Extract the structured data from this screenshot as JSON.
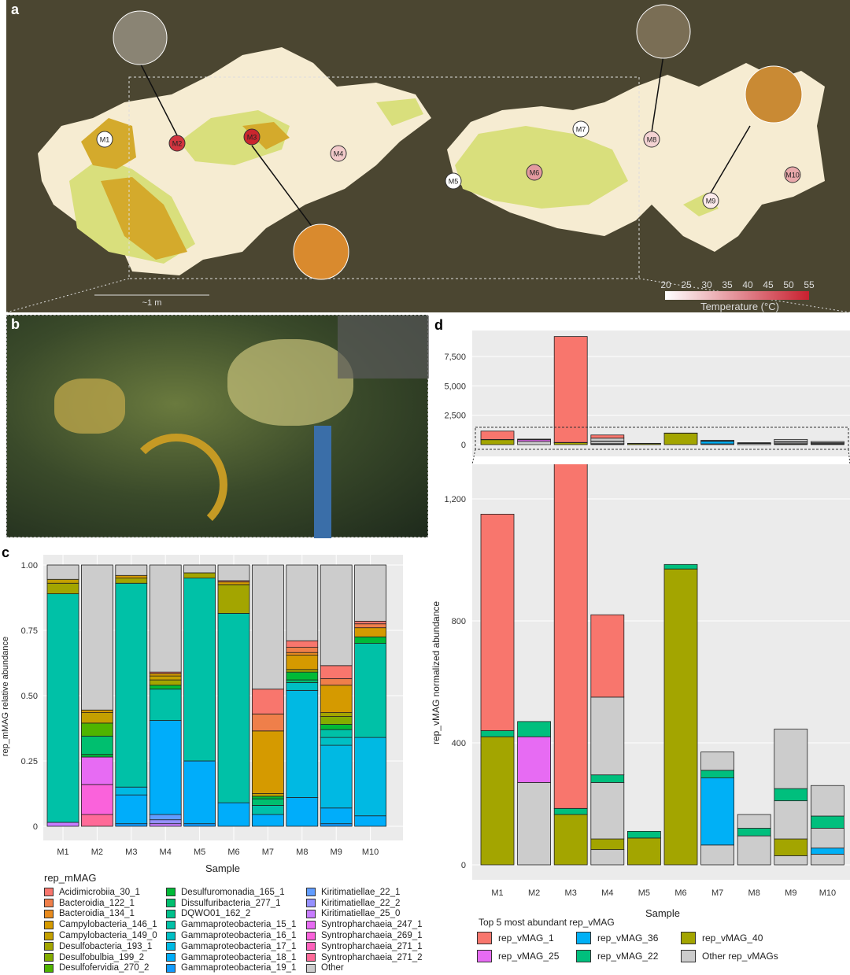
{
  "panels": {
    "a": "a",
    "b": "b",
    "c": "c",
    "d": "d"
  },
  "panel_a": {
    "scale_bar": "~1 m",
    "colorbar": {
      "title": "Temperature (°C)",
      "ticks": [
        "20",
        "25",
        "30",
        "35",
        "40",
        "45",
        "50",
        "55"
      ],
      "min_color": "#ffffff",
      "max_color": "#c8202f"
    },
    "sites": [
      {
        "label": "M1",
        "color": "#ffffff"
      },
      {
        "label": "M2",
        "color": "#d2343f"
      },
      {
        "label": "M3",
        "color": "#c9262e"
      },
      {
        "label": "M4",
        "color": "#f2caca"
      },
      {
        "label": "M5",
        "color": "#ffffff"
      },
      {
        "label": "M6",
        "color": "#e39aa0"
      },
      {
        "label": "M7",
        "color": "#ffffff"
      },
      {
        "label": "M8",
        "color": "#f4d3d3"
      },
      {
        "label": "M9",
        "color": "#fbeaea"
      },
      {
        "label": "M10",
        "color": "#e8a8aa"
      }
    ]
  },
  "chart_data": [
    {
      "type": "bar",
      "stacked": true,
      "panel": "c",
      "xlabel": "Sample",
      "ylabel": "rep_mMAG relative abundance",
      "ylim": [
        0,
        1
      ],
      "yticks": [
        "0",
        "0.25",
        "0.50",
        "0.75",
        "1.00"
      ],
      "ytick_values": [
        0,
        0.25,
        0.5,
        0.75,
        1.0
      ],
      "categories": [
        "M1",
        "M2",
        "M3",
        "M4",
        "M5",
        "M6",
        "M7",
        "M8",
        "M9",
        "M10"
      ],
      "legend_title": "rep_mMAG",
      "legend": [
        {
          "name": "Acidimicrobiia_30_1",
          "color": "#f8766d"
        },
        {
          "name": "Bacteroidia_122_1",
          "color": "#ef7f4a"
        },
        {
          "name": "Bacteroidia_134_1",
          "color": "#e88b1e"
        },
        {
          "name": "Campylobacteria_146_1",
          "color": "#d59a00"
        },
        {
          "name": "Campylobacteria_149_0",
          "color": "#c4a000"
        },
        {
          "name": "Desulfobacteria_193_1",
          "color": "#a3a500"
        },
        {
          "name": "Desulfobulbia_199_2",
          "color": "#84ad00"
        },
        {
          "name": "Desulfofervidia_270_2",
          "color": "#4fb400"
        },
        {
          "name": "Desulfuromonadia_165_1",
          "color": "#00ba38"
        },
        {
          "name": "Dissulfuribacteria_277_1",
          "color": "#00bf6f"
        },
        {
          "name": "DQWO01_162_2",
          "color": "#00c08b"
        },
        {
          "name": "Gammaproteobacteria_15_1",
          "color": "#00c1a7"
        },
        {
          "name": "Gammaproteobacteria_16_1",
          "color": "#00bfc4"
        },
        {
          "name": "Gammaproteobacteria_17_1",
          "color": "#00b9e3"
        },
        {
          "name": "Gammaproteobacteria_18_1",
          "color": "#00adfa"
        },
        {
          "name": "Gammaproteobacteria_19_1",
          "color": "#119cff"
        },
        {
          "name": "Kiritimatiellae_22_1",
          "color": "#619cff"
        },
        {
          "name": "Kiritimatiellae_22_2",
          "color": "#9590ff"
        },
        {
          "name": "Kiritimatiellae_25_0",
          "color": "#c77cff"
        },
        {
          "name": "Syntropharchaeia_247_1",
          "color": "#e76bf3"
        },
        {
          "name": "Syntropharchaeia_269_1",
          "color": "#fa62db"
        },
        {
          "name": "Syntropharchaeia_271_1",
          "color": "#ff62bc"
        },
        {
          "name": "Syntropharchaeia_271_2",
          "color": "#ff6a98"
        },
        {
          "name": "Other",
          "color": "#cccccc"
        }
      ],
      "stacks": [
        [
          [
            "Kiritimatiellae_25_0",
            0.015
          ],
          [
            "Gammaproteobacteria_15_1",
            0.875
          ],
          [
            "Desulfobacteria_193_1",
            0.04
          ],
          [
            "Campylobacteria_149_0",
            0.015
          ],
          [
            "Other",
            0.055
          ]
        ],
        [
          [
            "Syntropharchaeia_271_2",
            0.045
          ],
          [
            "Syntropharchaeia_269_1",
            0.115
          ],
          [
            "Syntropharchaeia_247_1",
            0.105
          ],
          [
            "Desulfuromonadia_165_1",
            0.01
          ],
          [
            "Dissulfuribacteria_277_1",
            0.07
          ],
          [
            "Desulfofervidia_270_2",
            0.05
          ],
          [
            "Campylobacteria_149_0",
            0.04
          ],
          [
            "Campylobacteria_146_1",
            0.01
          ],
          [
            "Other",
            0.555
          ]
        ],
        [
          [
            "Gammaproteobacteria_19_1",
            0.01
          ],
          [
            "Gammaproteobacteria_18_1",
            0.11
          ],
          [
            "Gammaproteobacteria_17_1",
            0.03
          ],
          [
            "Gammaproteobacteria_15_1",
            0.78
          ],
          [
            "Desulfobacteria_193_1",
            0.02
          ],
          [
            "Campylobacteria_146_1",
            0.01
          ],
          [
            "Other",
            0.04
          ]
        ],
        [
          [
            "Kiritimatiellae_25_0",
            0.01
          ],
          [
            "Kiritimatiellae_22_2",
            0.015
          ],
          [
            "Kiritimatiellae_22_1",
            0.02
          ],
          [
            "Gammaproteobacteria_18_1",
            0.36
          ],
          [
            "Gammaproteobacteria_15_1",
            0.12
          ],
          [
            "Desulfuromonadia_165_1",
            0.015
          ],
          [
            "Desulfobacteria_193_1",
            0.02
          ],
          [
            "Campylobacteria_149_0",
            0.015
          ],
          [
            "Campylobacteria_146_1",
            0.01
          ],
          [
            "Acidimicrobiia_30_1",
            0.005
          ],
          [
            "Other",
            0.41
          ]
        ],
        [
          [
            "Gammaproteobacteria_19_1",
            0.01
          ],
          [
            "Gammaproteobacteria_18_1",
            0.24
          ],
          [
            "Gammaproteobacteria_15_1",
            0.7
          ],
          [
            "Desulfobacteria_193_1",
            0.02
          ],
          [
            "Other",
            0.03
          ]
        ],
        [
          [
            "Gammaproteobacteria_18_1",
            0.09
          ],
          [
            "Gammaproteobacteria_15_1",
            0.725
          ],
          [
            "Desulfobacteria_193_1",
            0.11
          ],
          [
            "Campylobacteria_146_1",
            0.01
          ],
          [
            "Bacteroidia_122_1",
            0.005
          ],
          [
            "Other",
            0.06
          ]
        ],
        [
          [
            "Gammaproteobacteria_18_1",
            0.045
          ],
          [
            "Gammaproteobacteria_15_1",
            0.035
          ],
          [
            "Dissulfuribacteria_277_1",
            0.025
          ],
          [
            "Desulfuromonadia_165_1",
            0.01
          ],
          [
            "Campylobacteria_149_0",
            0.01
          ],
          [
            "Campylobacteria_146_1",
            0.24
          ],
          [
            "Bacteroidia_122_1",
            0.065
          ],
          [
            "Acidimicrobiia_30_1",
            0.095
          ],
          [
            "Other",
            0.475
          ]
        ],
        [
          [
            "Gammaproteobacteria_18_1",
            0.11
          ],
          [
            "Gammaproteobacteria_17_1",
            0.41
          ],
          [
            "Gammaproteobacteria_16_1",
            0.03
          ],
          [
            "Dissulfuribacteria_277_1",
            0.01
          ],
          [
            "Desulfuromonadia_165_1",
            0.03
          ],
          [
            "Desulfobacteria_193_1",
            0.01
          ],
          [
            "Campylobacteria_146_1",
            0.055
          ],
          [
            "Bacteroidia_134_1",
            0.01
          ],
          [
            "Bacteroidia_122_1",
            0.02
          ],
          [
            "Acidimicrobiia_30_1",
            0.025
          ],
          [
            "Other",
            0.29
          ]
        ],
        [
          [
            "Gammaproteobacteria_19_1",
            0.01
          ],
          [
            "Gammaproteobacteria_18_1",
            0.06
          ],
          [
            "Gammaproteobacteria_17_1",
            0.24
          ],
          [
            "Gammaproteobacteria_16_1",
            0.03
          ],
          [
            "Gammaproteobacteria_15_1",
            0.03
          ],
          [
            "Desulfuromonadia_165_1",
            0.02
          ],
          [
            "Desulfobulbia_199_2",
            0.03
          ],
          [
            "Desulfobacteria_193_1",
            0.015
          ],
          [
            "Campylobacteria_146_1",
            0.105
          ],
          [
            "Bacteroidia_122_1",
            0.025
          ],
          [
            "Acidimicrobiia_30_1",
            0.05
          ],
          [
            "Other",
            0.385
          ]
        ],
        [
          [
            "Gammaproteobacteria_18_1",
            0.04
          ],
          [
            "Gammaproteobacteria_17_1",
            0.3
          ],
          [
            "Gammaproteobacteria_15_1",
            0.36
          ],
          [
            "Desulfuromonadia_165_1",
            0.025
          ],
          [
            "Campylobacteria_146_1",
            0.035
          ],
          [
            "Bacteroidia_122_1",
            0.015
          ],
          [
            "Acidimicrobiia_30_1",
            0.01
          ],
          [
            "Other",
            0.215
          ]
        ]
      ]
    },
    {
      "type": "bar",
      "stacked": true,
      "panel": "d",
      "xlabel": "Sample",
      "ylabel": "rep_vMAG normalized abundance",
      "categories": [
        "M1",
        "M2",
        "M3",
        "M4",
        "M5",
        "M6",
        "M7",
        "M8",
        "M9",
        "M10"
      ],
      "upper_ylim": [
        0,
        9500
      ],
      "upper_yticks": [
        "0",
        "2,500",
        "5,000",
        "7,500"
      ],
      "upper_ytick_values": [
        0,
        2500,
        5000,
        7500
      ],
      "lower_ylim": [
        0,
        1400
      ],
      "lower_yticks": [
        "0",
        "400",
        "800",
        "1,200"
      ],
      "lower_ytick_values": [
        0,
        400,
        800,
        1200
      ],
      "legend_title": "Top 5 most abundant rep_vMAG",
      "legend": [
        {
          "name": "rep_vMAG_1",
          "color": "#f8766d"
        },
        {
          "name": "rep_vMAG_40",
          "color": "#a3a500"
        },
        {
          "name": "rep_vMAG_22",
          "color": "#00bf7d"
        },
        {
          "name": "rep_vMAG_36",
          "color": "#00b0f6"
        },
        {
          "name": "rep_vMAG_25",
          "color": "#e76bf3"
        },
        {
          "name": "Other rep_vMAGs",
          "color": "#cccccc"
        }
      ],
      "stacks": [
        [
          [
            "rep_vMAG_40",
            420
          ],
          [
            "rep_vMAG_22",
            20
          ],
          [
            "rep_vMAG_1",
            710
          ]
        ],
        [
          [
            "Other rep_vMAGs",
            270
          ],
          [
            "rep_vMAG_25",
            150
          ],
          [
            "rep_vMAG_22",
            50
          ]
        ],
        [
          [
            "rep_vMAG_40",
            165
          ],
          [
            "rep_vMAG_22",
            20
          ],
          [
            "rep_vMAG_1",
            9015
          ]
        ],
        [
          [
            "Other rep_vMAGs",
            50
          ],
          [
            "rep_vMAG_40",
            35
          ],
          [
            "Other rep_vMAGs",
            185
          ],
          [
            "rep_vMAG_22",
            25
          ],
          [
            "Other rep_vMAGs",
            255
          ],
          [
            "rep_vMAG_1",
            270
          ]
        ],
        [
          [
            "rep_vMAG_40",
            88
          ],
          [
            "rep_vMAG_22",
            22
          ]
        ],
        [
          [
            "rep_vMAG_40",
            970
          ],
          [
            "rep_vMAG_22",
            15
          ]
        ],
        [
          [
            "Other rep_vMAGs",
            65
          ],
          [
            "rep_vMAG_36",
            220
          ],
          [
            "rep_vMAG_22",
            25
          ],
          [
            "Other rep_vMAGs",
            60
          ]
        ],
        [
          [
            "Other rep_vMAGs",
            95
          ],
          [
            "rep_vMAG_22",
            25
          ],
          [
            "Other rep_vMAGs",
            45
          ]
        ],
        [
          [
            "Other rep_vMAGs",
            30
          ],
          [
            "rep_vMAG_40",
            55
          ],
          [
            "Other rep_vMAGs",
            125
          ],
          [
            "rep_vMAG_22",
            40
          ],
          [
            "Other rep_vMAGs",
            195
          ]
        ],
        [
          [
            "Other rep_vMAGs",
            35
          ],
          [
            "rep_vMAG_36",
            20
          ],
          [
            "Other rep_vMAGs",
            65
          ],
          [
            "rep_vMAG_22",
            40
          ],
          [
            "Other rep_vMAGs",
            100
          ]
        ]
      ]
    }
  ]
}
